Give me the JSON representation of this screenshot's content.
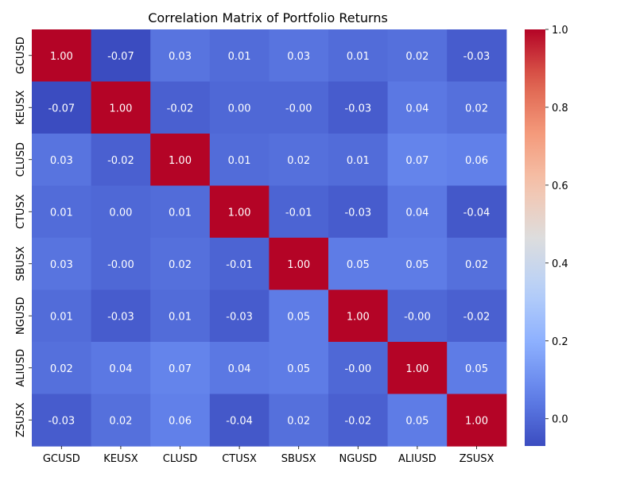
{
  "chart_data": {
    "type": "heatmap",
    "title": "Correlation Matrix of Portfolio Returns",
    "x_labels": [
      "GCUSD",
      "KEUSX",
      "CLUSD",
      "CTUSX",
      "SBUSX",
      "NGUSD",
      "ALIUSD",
      "ZSUSX"
    ],
    "y_labels": [
      "GCUSD",
      "KEUSX",
      "CLUSD",
      "CTUSX",
      "SBUSX",
      "NGUSD",
      "ALIUSD",
      "ZSUSX"
    ],
    "matrix": [
      [
        1.0,
        -0.07,
        0.03,
        0.01,
        0.03,
        0.01,
        0.02,
        -0.03
      ],
      [
        -0.07,
        1.0,
        -0.02,
        0.0,
        -0.0,
        -0.03,
        0.04,
        0.02
      ],
      [
        0.03,
        -0.02,
        1.0,
        0.01,
        0.02,
        0.01,
        0.07,
        0.06
      ],
      [
        0.01,
        0.0,
        0.01,
        1.0,
        -0.01,
        -0.03,
        0.04,
        -0.04
      ],
      [
        0.03,
        -0.0,
        0.02,
        -0.01,
        1.0,
        0.05,
        0.05,
        0.02
      ],
      [
        0.01,
        -0.03,
        0.01,
        -0.03,
        0.05,
        1.0,
        -0.0,
        -0.02
      ],
      [
        0.02,
        0.04,
        0.07,
        0.04,
        0.05,
        -0.0,
        1.0,
        0.05
      ],
      [
        -0.03,
        0.02,
        0.06,
        -0.04,
        0.02,
        -0.02,
        0.05,
        1.0
      ]
    ],
    "value_labels": [
      [
        "1.00",
        "-0.07",
        "0.03",
        "0.01",
        "0.03",
        "0.01",
        "0.02",
        "-0.03"
      ],
      [
        "-0.07",
        "1.00",
        "-0.02",
        "0.00",
        "-0.00",
        "-0.03",
        "0.04",
        "0.02"
      ],
      [
        "0.03",
        "-0.02",
        "1.00",
        "0.01",
        "0.02",
        "0.01",
        "0.07",
        "0.06"
      ],
      [
        "0.01",
        "0.00",
        "0.01",
        "1.00",
        "-0.01",
        "-0.03",
        "0.04",
        "-0.04"
      ],
      [
        "0.03",
        "-0.00",
        "0.02",
        "-0.01",
        "1.00",
        "0.05",
        "0.05",
        "0.02"
      ],
      [
        "0.01",
        "-0.03",
        "0.01",
        "-0.03",
        "0.05",
        "1.00",
        "-0.00",
        "-0.02"
      ],
      [
        "0.02",
        "0.04",
        "0.07",
        "0.04",
        "0.05",
        "-0.00",
        "1.00",
        "0.05"
      ],
      [
        "-0.03",
        "0.02",
        "0.06",
        "-0.04",
        "0.02",
        "-0.02",
        "0.05",
        "1.00"
      ]
    ],
    "colormap": "coolwarm",
    "vmin": -0.07,
    "vmax": 1.0,
    "colorbar_ticks": [
      0.0,
      0.2,
      0.4,
      0.6,
      0.8,
      1.0
    ],
    "colorbar_tick_labels": [
      "0.0",
      "0.2",
      "0.4",
      "0.6",
      "0.8",
      "1.0"
    ],
    "grid": false,
    "legend": "colorbar-right"
  }
}
